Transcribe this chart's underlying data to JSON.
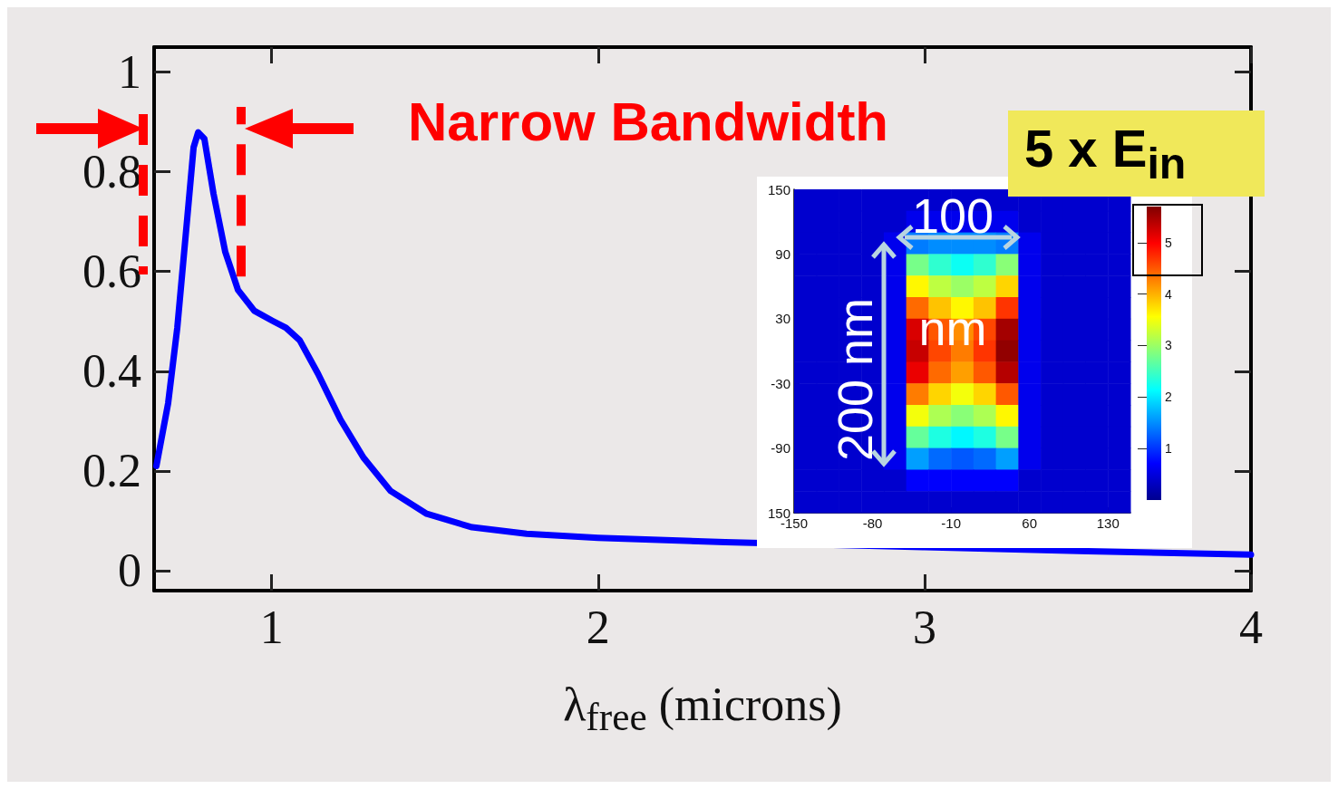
{
  "chart_data": [
    {
      "type": "line",
      "xlabel": "λ$_{free}$ (microns)",
      "x": [
        0.647,
        0.683,
        0.711,
        0.739,
        0.761,
        0.775,
        0.794,
        0.822,
        0.858,
        0.897,
        0.947,
        1.003,
        1.044,
        1.086,
        1.142,
        1.211,
        1.281,
        1.364,
        1.475,
        1.614,
        1.781,
        2,
        2.39,
        3,
        3.5,
        4
      ],
      "series": [
        {
          "color": "#0000ff",
          "values": [
            0.21,
            0.336,
            0.487,
            0.689,
            0.849,
            0.879,
            0.866,
            0.756,
            0.639,
            0.563,
            0.521,
            0.501,
            0.487,
            0.462,
            0.395,
            0.303,
            0.227,
            0.16,
            0.114,
            0.087,
            0.074,
            0.066,
            0.057,
            0.047,
            0.039,
            0.032
          ]
        }
      ],
      "xlim": [
        0.64,
        4
      ],
      "ylim": [
        -0.04,
        1.05
      ],
      "xticks": [
        1,
        2,
        3,
        4
      ],
      "yticks": [
        0,
        0.2,
        0.4,
        0.6,
        0.8,
        1
      ],
      "grid": false,
      "marker": "none",
      "line_style": "solid",
      "ref_lines": [
        {
          "axis": "x",
          "value": 0.906,
          "color": "#ff0000",
          "line_style": "dashed"
        }
      ],
      "annotations": [
        "Narrow Bandwidth"
      ]
    },
    {
      "type": "heatmap",
      "x": [
        -140,
        -120,
        -100,
        -80,
        -60,
        -40,
        -20,
        0,
        20,
        40,
        60,
        80,
        100,
        120,
        140
      ],
      "y": [
        140,
        120,
        100,
        80,
        60,
        40,
        20,
        0,
        -20,
        -40,
        -60,
        -80,
        -100,
        -120,
        -140
      ],
      "xlim": [
        -150,
        150
      ],
      "ylim": [
        -150,
        150
      ],
      "xticks": [
        -150,
        -80,
        -10,
        60,
        130
      ],
      "yticks": [
        {
          "value": -150,
          "label": "150"
        },
        -90,
        -30,
        30,
        90,
        150
      ],
      "clim": [
        0,
        5.7
      ],
      "cticks": [
        1,
        2,
        3,
        4,
        5
      ],
      "cells": [
        [
          0.4,
          0.4,
          0.4,
          0.4,
          0.4,
          0.4,
          0.4,
          0.4,
          0.4,
          0.4,
          0.4,
          0.4,
          0.4,
          0.4,
          0.4
        ],
        [
          0.4,
          0.4,
          0.4,
          0.4,
          0.4,
          0.6,
          0.6,
          0.6,
          0.6,
          0.6,
          0.4,
          0.4,
          0.4,
          0.4,
          0.4
        ],
        [
          0.4,
          0.4,
          0.4,
          0.4,
          0.6,
          1.4,
          1.5,
          1.5,
          1.5,
          1.4,
          0.6,
          0.4,
          0.4,
          0.4,
          0.4
        ],
        [
          0.4,
          0.4,
          0.4,
          0.4,
          0.6,
          2.8,
          2.4,
          2.2,
          2.4,
          2.9,
          0.6,
          0.4,
          0.4,
          0.4,
          0.4
        ],
        [
          0.4,
          0.4,
          0.4,
          0.4,
          0.6,
          3.6,
          3.2,
          3,
          3.2,
          3.8,
          0.6,
          0.4,
          0.4,
          0.4,
          0.4
        ],
        [
          0.4,
          0.4,
          0.4,
          0.4,
          0.6,
          4.4,
          3.9,
          3.6,
          3.9,
          4.7,
          0.6,
          0.4,
          0.4,
          0.4,
          0.4
        ],
        [
          0.4,
          0.4,
          0.4,
          0.4,
          0.6,
          5.2,
          4.5,
          4.2,
          4.6,
          5.5,
          0.6,
          0.4,
          0.4,
          0.4,
          0.4
        ],
        [
          0.4,
          0.4,
          0.4,
          0.4,
          0.6,
          5.3,
          4.6,
          4.3,
          4.7,
          5.6,
          0.6,
          0.4,
          0.4,
          0.4,
          0.4
        ],
        [
          0.4,
          0.4,
          0.4,
          0.4,
          0.6,
          5.1,
          4.4,
          4.1,
          4.5,
          5.4,
          0.6,
          0.4,
          0.4,
          0.4,
          0.4
        ],
        [
          0.4,
          0.4,
          0.4,
          0.4,
          0.6,
          4.3,
          3.8,
          3.5,
          3.8,
          4.5,
          0.6,
          0.4,
          0.4,
          0.4,
          0.4
        ],
        [
          0.4,
          0.4,
          0.4,
          0.4,
          0.6,
          3.5,
          3.1,
          2.9,
          3.1,
          3.6,
          0.6,
          0.4,
          0.4,
          0.4,
          0.4
        ],
        [
          0.4,
          0.4,
          0.4,
          0.4,
          0.6,
          2.7,
          2.3,
          2.1,
          2.3,
          2.8,
          0.6,
          0.4,
          0.4,
          0.4,
          0.4
        ],
        [
          0.4,
          0.4,
          0.4,
          0.4,
          0.6,
          1.6,
          1.3,
          1.2,
          1.3,
          1.6,
          0.6,
          0.4,
          0.4,
          0.4,
          0.4
        ],
        [
          0.4,
          0.4,
          0.4,
          0.4,
          0.4,
          0.7,
          0.7,
          0.7,
          0.7,
          0.7,
          0.4,
          0.4,
          0.4,
          0.4,
          0.4
        ],
        [
          0.4,
          0.4,
          0.4,
          0.4,
          0.4,
          0.4,
          0.4,
          0.4,
          0.4,
          0.4,
          0.4,
          0.4,
          0.4,
          0.4,
          0.4
        ]
      ],
      "annotations": [
        "5 x E$_{in}$",
        "100 nm",
        "200 nm"
      ]
    }
  ]
}
